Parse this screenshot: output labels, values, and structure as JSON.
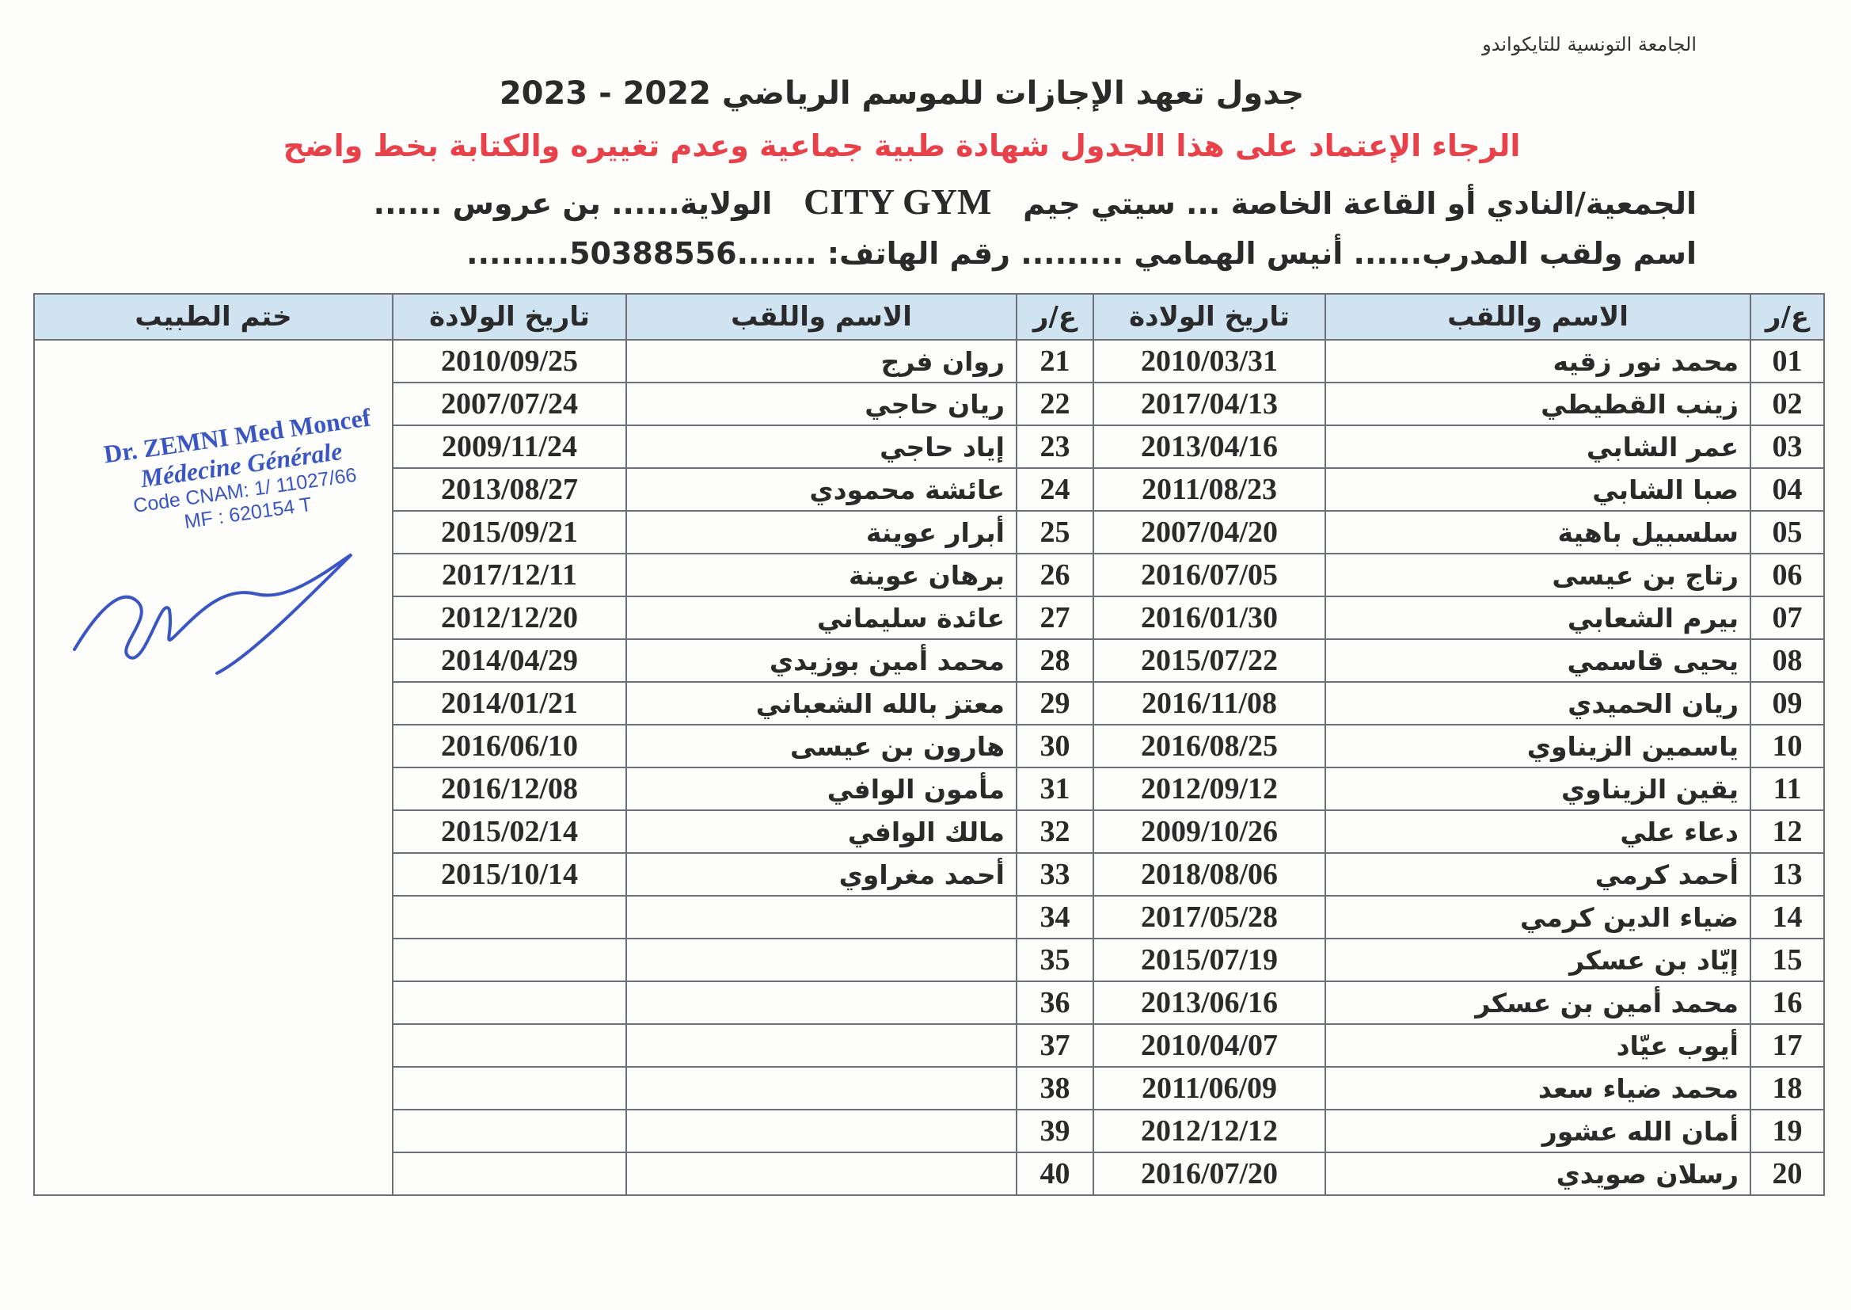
{
  "header": {
    "organization": "الجامعة التونسية للتايكواندو",
    "title": "جدول تعهد الإجازات للموسم الرياضي 2022 - 2023",
    "warning": "الرجاء الإعتماد على هذا الجدول شهادة طبية جماعية وعدم تغييره والكتابة بخط واضح",
    "association_label": "الجمعية/النادي أو القاعة الخاصة ... سيتي جيم",
    "association_latin": "CITY GYM",
    "state_label": "الولاية...... بن عروس ......",
    "coach_line": "اسم ولقب المدرب...... أنيس الهمامي ......... رقم الهاتف: .......50388556........."
  },
  "table": {
    "headers": {
      "num": "ع/ر",
      "name": "الاسم واللقب",
      "birth": "تاريخ الولادة",
      "stamp": "ختم الطبيب"
    },
    "rows": [
      {
        "l": {
          "n": "01",
          "name": "محمد نور زقيه",
          "d": "2010/03/31"
        },
        "r": {
          "n": "21",
          "name": "روان فرج",
          "d": "2010/09/25"
        }
      },
      {
        "l": {
          "n": "02",
          "name": "زينب القطيطي",
          "d": "2017/04/13"
        },
        "r": {
          "n": "22",
          "name": "ريان حاجي",
          "d": "2007/07/24"
        }
      },
      {
        "l": {
          "n": "03",
          "name": "عمر الشابي",
          "d": "2013/04/16"
        },
        "r": {
          "n": "23",
          "name": "إياد حاجي",
          "d": "2009/11/24"
        }
      },
      {
        "l": {
          "n": "04",
          "name": "صبا الشابي",
          "d": "2011/08/23"
        },
        "r": {
          "n": "24",
          "name": "عائشة محمودي",
          "d": "2013/08/27"
        }
      },
      {
        "l": {
          "n": "05",
          "name": "سلسبيل باهية",
          "d": "2007/04/20"
        },
        "r": {
          "n": "25",
          "name": "أبرار عوينة",
          "d": "2015/09/21"
        }
      },
      {
        "l": {
          "n": "06",
          "name": "رتاج بن عيسى",
          "d": "2016/07/05"
        },
        "r": {
          "n": "26",
          "name": "برهان عوينة",
          "d": "2017/12/11"
        }
      },
      {
        "l": {
          "n": "07",
          "name": "بيرم الشعابي",
          "d": "2016/01/30"
        },
        "r": {
          "n": "27",
          "name": "عائدة سليماني",
          "d": "2012/12/20"
        }
      },
      {
        "l": {
          "n": "08",
          "name": "يحيى قاسمي",
          "d": "2015/07/22"
        },
        "r": {
          "n": "28",
          "name": "محمد أمين بوزيدي",
          "d": "2014/04/29"
        }
      },
      {
        "l": {
          "n": "09",
          "name": "ريان الحميدي",
          "d": "2016/11/08"
        },
        "r": {
          "n": "29",
          "name": "معتز بالله الشعباني",
          "d": "2014/01/21"
        }
      },
      {
        "l": {
          "n": "10",
          "name": "ياسمين الزيناوي",
          "d": "2016/08/25"
        },
        "r": {
          "n": "30",
          "name": "هارون بن عيسى",
          "d": "2016/06/10"
        }
      },
      {
        "l": {
          "n": "11",
          "name": "يقين الزيناوي",
          "d": "2012/09/12"
        },
        "r": {
          "n": "31",
          "name": "مأمون الوافي",
          "d": "2016/12/08"
        }
      },
      {
        "l": {
          "n": "12",
          "name": "دعاء علي",
          "d": "2009/10/26"
        },
        "r": {
          "n": "32",
          "name": "مالك الوافي",
          "d": "2015/02/14"
        }
      },
      {
        "l": {
          "n": "13",
          "name": "أحمد كرمي",
          "d": "2018/08/06"
        },
        "r": {
          "n": "33",
          "name": "أحمد مغراوي",
          "d": "2015/10/14"
        }
      },
      {
        "l": {
          "n": "14",
          "name": "ضياء الدين كرمي",
          "d": "2017/05/28"
        },
        "r": {
          "n": "34",
          "name": "",
          "d": ""
        }
      },
      {
        "l": {
          "n": "15",
          "name": "إيّاد بن عسكر",
          "d": "2015/07/19"
        },
        "r": {
          "n": "35",
          "name": "",
          "d": ""
        }
      },
      {
        "l": {
          "n": "16",
          "name": "محمد أمين بن عسكر",
          "d": "2013/06/16"
        },
        "r": {
          "n": "36",
          "name": "",
          "d": ""
        }
      },
      {
        "l": {
          "n": "17",
          "name": "أيوب عيّاد",
          "d": "2010/04/07"
        },
        "r": {
          "n": "37",
          "name": "",
          "d": ""
        }
      },
      {
        "l": {
          "n": "18",
          "name": "محمد ضياء سعد",
          "d": "2011/06/09"
        },
        "r": {
          "n": "38",
          "name": "",
          "d": ""
        }
      },
      {
        "l": {
          "n": "19",
          "name": "أمان الله عشور",
          "d": "2012/12/12"
        },
        "r": {
          "n": "39",
          "name": "",
          "d": ""
        }
      },
      {
        "l": {
          "n": "20",
          "name": "رسلان صويدي",
          "d": "2016/07/20"
        },
        "r": {
          "n": "40",
          "name": "",
          "d": ""
        }
      }
    ]
  },
  "stamp": {
    "line1": "Dr. ZEMNI Med Moncef",
    "line2": "Médecine Générale",
    "line3": "Code CNAM: 1/ 11027/66",
    "line4": "MF : 620154 T",
    "color": "#3a56c4"
  }
}
